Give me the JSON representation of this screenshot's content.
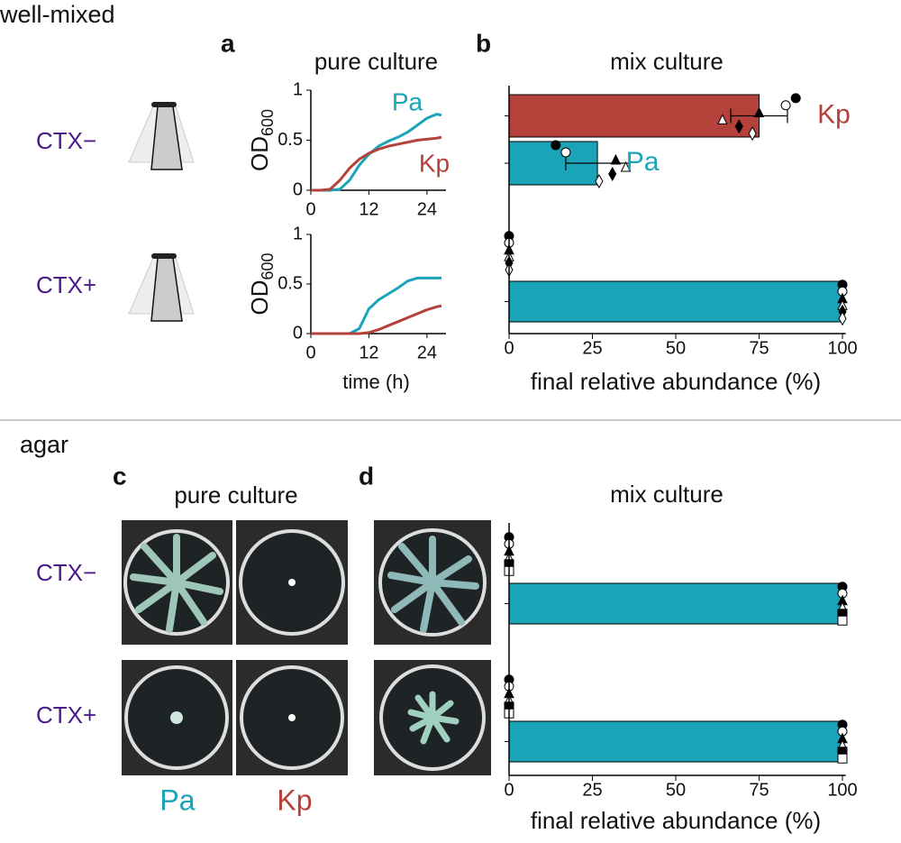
{
  "sections": {
    "well_mixed": "well-mixed",
    "agar": "agar"
  },
  "panels": [
    "a",
    "b",
    "c",
    "d"
  ],
  "well_mixed_rows": [
    "CTX−",
    "CTX+"
  ],
  "agar_rows": [
    "CTX−",
    "CTX+"
  ],
  "agar_pure_title": "pure culture",
  "plate_labels": [
    "Pa",
    "Kp"
  ],
  "chart_data": [
    {
      "type": "line",
      "title": "pure culture",
      "ylabel": "OD",
      "ylabel_sub": "600",
      "xlim": [
        0,
        27
      ],
      "ylim": [
        0,
        1
      ],
      "xticks": [
        0,
        12,
        24
      ],
      "yticks": [
        0,
        0.5,
        1
      ],
      "series": [
        {
          "name": "Pa",
          "color": "#1ba3b8",
          "x": [
            0,
            2,
            4,
            6,
            8,
            10,
            12,
            14,
            16,
            18,
            20,
            22,
            24,
            26,
            27
          ],
          "values": [
            0,
            0,
            0,
            0.01,
            0.1,
            0.25,
            0.36,
            0.44,
            0.49,
            0.53,
            0.58,
            0.65,
            0.72,
            0.76,
            0.75
          ]
        },
        {
          "name": "Kp",
          "color": "#b5413b",
          "x": [
            0,
            2,
            4,
            6,
            8,
            10,
            12,
            14,
            16,
            18,
            20,
            22,
            24,
            26,
            27
          ],
          "values": [
            0,
            0,
            0.01,
            0.1,
            0.22,
            0.31,
            0.37,
            0.41,
            0.44,
            0.46,
            0.48,
            0.5,
            0.51,
            0.52,
            0.53
          ]
        }
      ]
    },
    {
      "type": "line",
      "xlabel": "time (h)",
      "ylabel": "OD",
      "ylabel_sub": "600",
      "xlim": [
        0,
        27
      ],
      "ylim": [
        0,
        1
      ],
      "xticks": [
        0,
        12,
        24
      ],
      "yticks": [
        0,
        0.5,
        1
      ],
      "series": [
        {
          "color": "#1ba3b8",
          "x": [
            0,
            2,
            4,
            6,
            8,
            10,
            12,
            14,
            16,
            18,
            20,
            22,
            24,
            26,
            27
          ],
          "values": [
            0,
            0,
            0,
            0,
            0,
            0.05,
            0.25,
            0.34,
            0.4,
            0.46,
            0.53,
            0.56,
            0.56,
            0.56,
            0.56
          ]
        },
        {
          "color": "#b5413b",
          "x": [
            0,
            2,
            4,
            6,
            8,
            10,
            12,
            14,
            16,
            18,
            20,
            22,
            24,
            26,
            27
          ],
          "values": [
            0,
            0,
            0,
            0,
            0,
            0,
            0.01,
            0.04,
            0.08,
            0.12,
            0.16,
            0.2,
            0.24,
            0.27,
            0.28
          ]
        }
      ]
    },
    {
      "type": "hbar",
      "title": "mix culture",
      "xlabel": "final relative abundance (%)",
      "xlim": [
        0,
        101
      ],
      "xticks": [
        0,
        25,
        50,
        75,
        100
      ],
      "markers": [
        "filled-circle",
        "circle",
        "filled-triangle",
        "triangle",
        "filled-diamond",
        "diamond"
      ],
      "series": [
        {
          "name": "Kp",
          "color": "#b5413b",
          "values": [
            75,
            0
          ],
          "errors": [
            8.5,
            null
          ],
          "points": [
            [
              86,
              83,
              75,
              64,
              69,
              73
            ],
            [
              0,
              0,
              0,
              0,
              0,
              0
            ]
          ]
        },
        {
          "name": "Pa",
          "color": "#1ba3b8",
          "values": [
            26.5,
            100
          ],
          "errors": [
            9.5,
            null
          ],
          "points": [
            [
              14,
              17,
              32,
              35,
              31,
              27
            ],
            [
              100,
              100,
              100,
              100,
              100,
              100
            ]
          ]
        }
      ]
    },
    {
      "type": "hbar",
      "title": "mix culture",
      "xlabel": "final relative abundance (%)",
      "xlim": [
        0,
        101
      ],
      "xticks": [
        0,
        25,
        50,
        75,
        100
      ],
      "markers": [
        "filled-circle",
        "circle",
        "filled-triangle",
        "triangle",
        "filled-square",
        "square"
      ],
      "series": [
        {
          "color": "#b5413b",
          "values": [
            0,
            0
          ],
          "points": [
            [
              0,
              0,
              0,
              0,
              0,
              0
            ],
            [
              0,
              0,
              0,
              0,
              0,
              0
            ]
          ]
        },
        {
          "color": "#1ba3b8",
          "values": [
            100,
            100
          ],
          "points": [
            [
              100,
              100,
              100,
              100,
              100,
              100
            ],
            [
              100,
              100,
              100,
              100,
              100,
              100
            ]
          ]
        }
      ]
    }
  ]
}
